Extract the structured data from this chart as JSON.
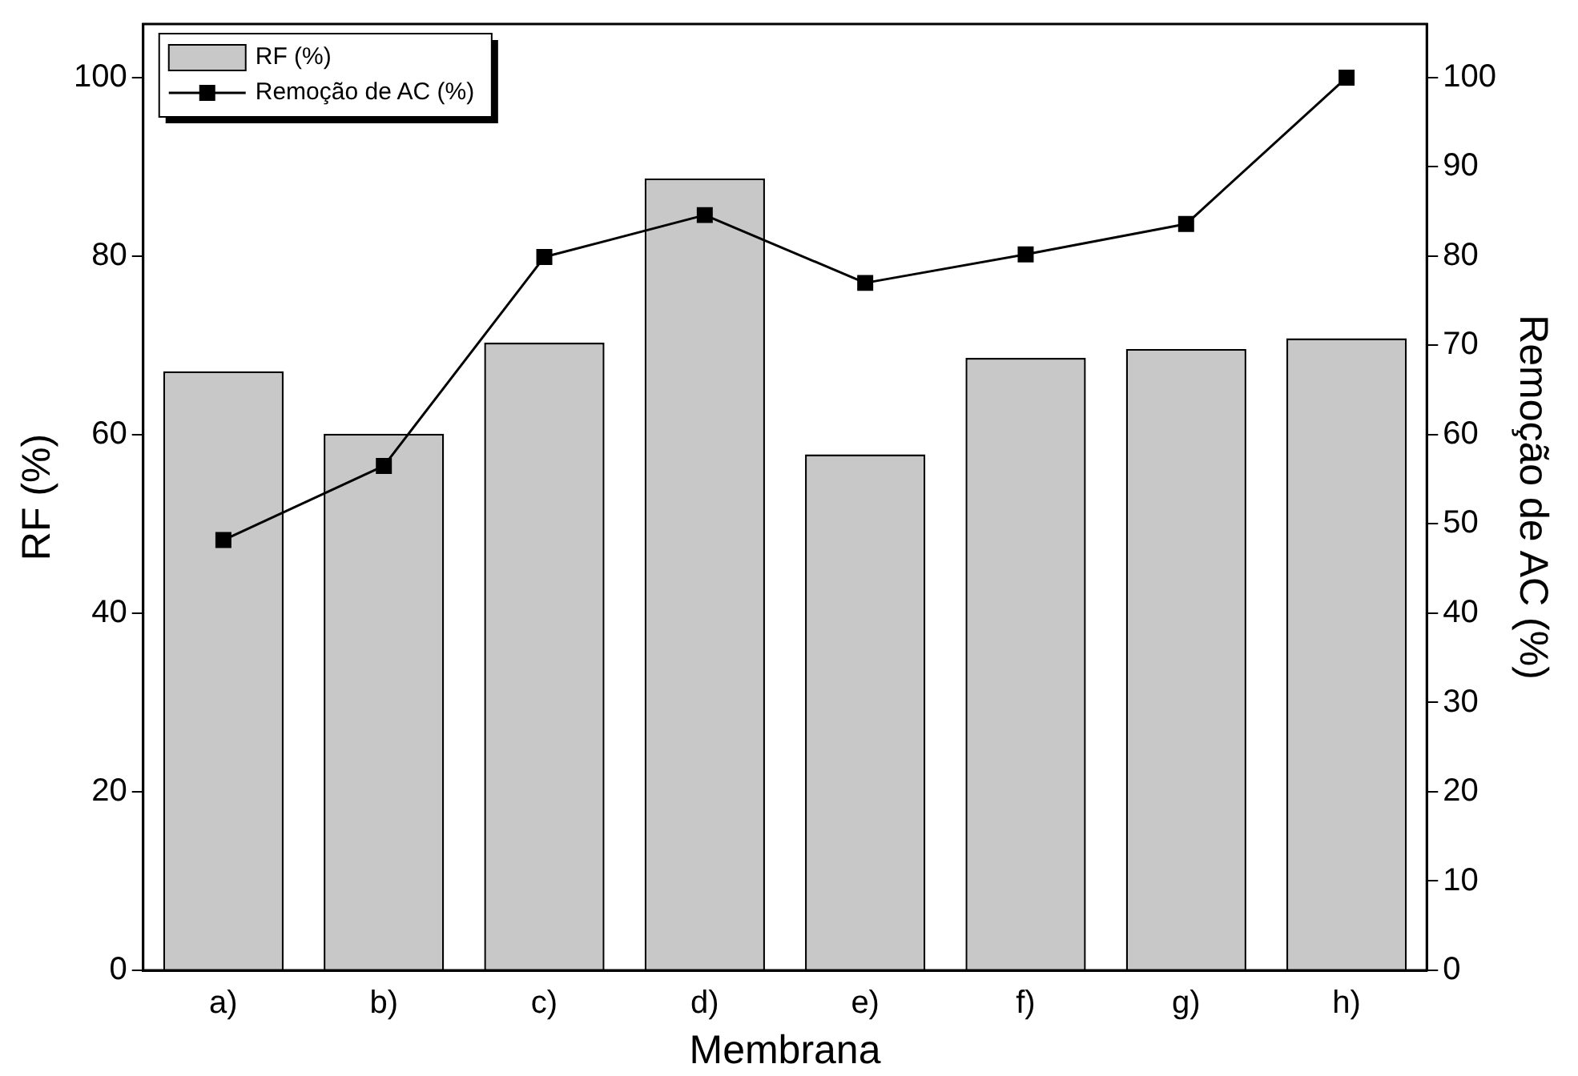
{
  "chart_data": {
    "type": "bar",
    "xlabel": "Membrana",
    "ylabel": "RF (%)",
    "y2label": "Remoção de AC (%)",
    "categories": [
      "a)",
      "b)",
      "c)",
      "d)",
      "e)",
      "f)",
      "g)",
      "h)"
    ],
    "series": [
      {
        "name": "RF (%)",
        "color": "#c8c8c8",
        "values": [
          67.1,
          60.1,
          70.3,
          88.7,
          57.8,
          68.6,
          69.6,
          70.8
        ]
      },
      {
        "name": "Remoção de AC (%)",
        "type": "line",
        "axis": "y2",
        "color": "#000000",
        "marker": "square",
        "values": [
          48.2,
          56.5,
          79.9,
          84.6,
          77.0,
          80.2,
          83.6,
          100
        ]
      }
    ],
    "ylim": [
      0,
      106
    ],
    "yticks": [
      0,
      20,
      40,
      60,
      80,
      100
    ],
    "y2lim": [
      0,
      106
    ],
    "y2ticks": [
      0,
      10,
      20,
      30,
      40,
      50,
      60,
      70,
      80,
      90,
      100
    ],
    "grid": false,
    "legend": "top left"
  }
}
